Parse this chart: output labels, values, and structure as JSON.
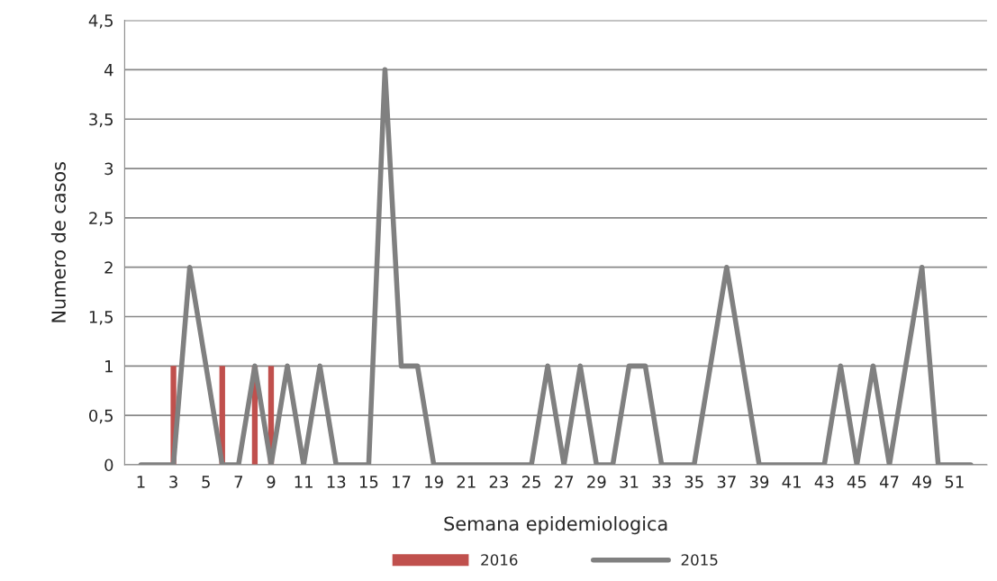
{
  "chart_data": {
    "type": "bar",
    "xlabel": "Semana epidemiologica",
    "ylabel": "Numero de casos",
    "categories": [
      "1",
      null,
      "3",
      null,
      "5",
      null,
      "7",
      null,
      "9",
      null,
      "11",
      null,
      "13",
      null,
      "15",
      null,
      "17",
      null,
      "19",
      null,
      "21",
      null,
      "23",
      null,
      "25",
      null,
      "27",
      null,
      "29",
      null,
      "31",
      null,
      "33",
      null,
      "35",
      null,
      "37",
      null,
      "39",
      null,
      "41",
      null,
      "43",
      null,
      "45",
      null,
      "47",
      null,
      "49",
      null,
      "51",
      null
    ],
    "series": [
      {
        "name": "2016",
        "color": "#c0504d",
        "values": [
          null,
          null,
          1,
          null,
          null,
          1,
          null,
          1,
          1,
          null,
          null,
          null,
          null,
          null,
          null,
          null,
          null,
          null,
          null,
          null,
          null,
          null,
          null,
          null,
          null,
          null,
          null,
          null,
          null,
          null,
          null,
          null,
          null,
          null,
          null,
          null,
          null,
          null,
          null,
          null,
          null,
          null,
          null,
          null,
          null,
          null,
          null,
          null,
          null,
          null,
          null,
          null
        ]
      },
      {
        "name": "2015",
        "type": "line",
        "color": "#808080",
        "values": [
          0,
          0,
          0,
          2,
          1,
          0,
          0,
          1,
          0,
          1,
          0,
          1,
          0,
          0,
          0,
          4,
          1,
          1,
          0,
          0,
          0,
          0,
          0,
          0,
          0,
          1,
          0,
          1,
          0,
          0,
          1,
          1,
          0,
          0,
          0,
          1,
          2,
          1,
          0,
          0,
          0,
          0,
          0,
          1,
          0,
          1,
          0,
          1,
          2,
          0,
          0,
          0
        ]
      }
    ],
    "ylim": [
      0,
      4.5
    ],
    "yticks": [
      {
        "value": 0,
        "label": "0"
      },
      {
        "value": 0.5,
        "label": "0,5"
      },
      {
        "value": 1,
        "label": "1"
      },
      {
        "value": 1.5,
        "label": "1,5"
      },
      {
        "value": 2,
        "label": "2"
      },
      {
        "value": 2.5,
        "label": "2,5"
      },
      {
        "value": 3,
        "label": "3"
      },
      {
        "value": 3.5,
        "label": "3,5"
      },
      {
        "value": 4,
        "label": "4"
      },
      {
        "value": 4.5,
        "label": "4,5"
      }
    ],
    "grid": "y",
    "legend": "bottom",
    "marker": "none",
    "line_style": "solid"
  }
}
